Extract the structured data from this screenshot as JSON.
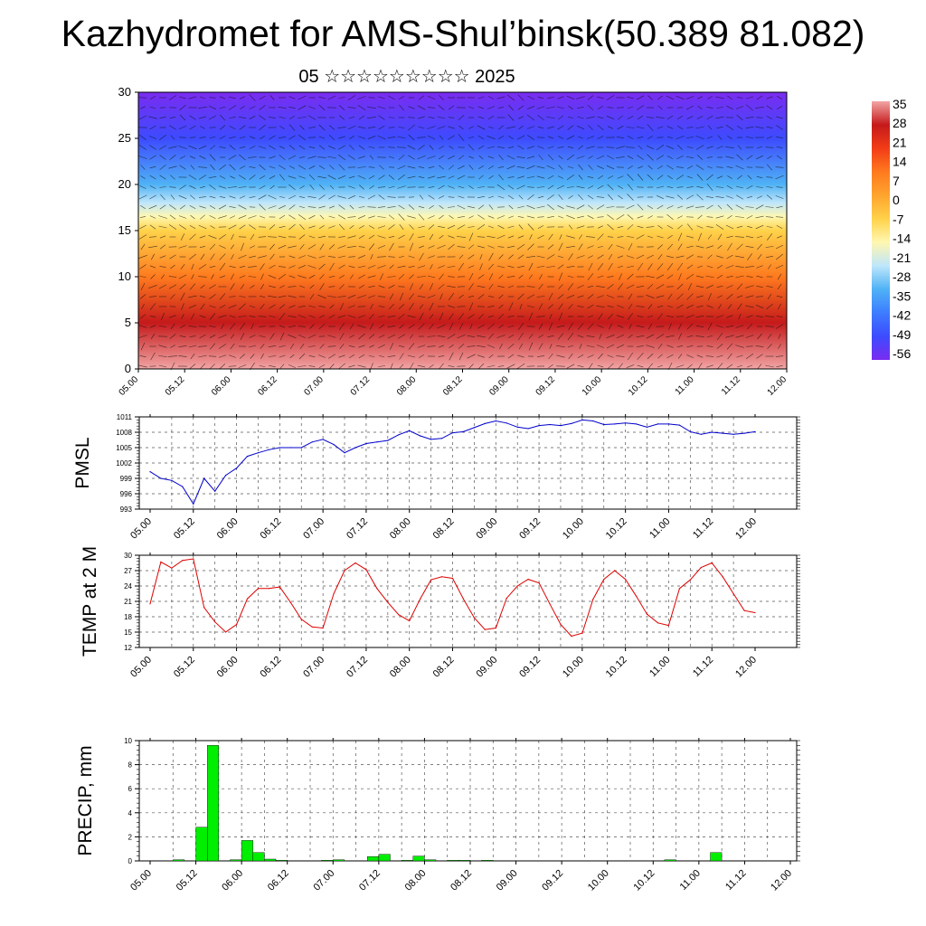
{
  "header": {
    "title": "Kazhydromet for AMS-Shul’binsk(50.389 81.082)",
    "subtitle": "05 ☆☆☆☆☆☆☆☆☆ 2025"
  },
  "time_ticks": [
    "05.00",
    "05.12",
    "06.00",
    "06.12",
    "07.00",
    "07.12",
    "08.00",
    "08.12",
    "09.00",
    "09.12",
    "10.00",
    "10.12",
    "11.00",
    "11.12",
    "12.00"
  ],
  "chart_data": [
    {
      "type": "heatmap",
      "title": "",
      "xlabel": "",
      "ylabel": "",
      "x_ticks": [
        "05.00",
        "05.12",
        "06.00",
        "06.12",
        "07.00",
        "07.12",
        "08.00",
        "08.12",
        "09.00",
        "09.12",
        "10.00",
        "10.12",
        "11.00",
        "11.12",
        "12.00"
      ],
      "y_ticks": [
        0,
        5,
        10,
        15,
        20,
        25,
        30
      ],
      "ylim": [
        0,
        30
      ],
      "wind_vectors": true,
      "colorbar": {
        "labels": [
          "35",
          "28",
          "21",
          "14",
          "7",
          "0",
          "-7",
          "-14",
          "-21",
          "-28",
          "-35",
          "-42",
          "-49",
          "-56"
        ],
        "range": [
          -56,
          35
        ],
        "colors": [
          "#7a2cf0",
          "#3d4bff",
          "#3d7cff",
          "#4fb2f5",
          "#bfe6fb",
          "#fff7b0",
          "#ffd24a",
          "#ffa42e",
          "#ff7a1e",
          "#f23c17",
          "#c51a1b",
          "#f2a5a5"
        ]
      },
      "profile": {
        "levels": [
          0,
          5,
          10,
          15,
          16.5,
          18,
          20,
          25,
          30
        ],
        "temperature": [
          30,
          21,
          10,
          -5,
          -13,
          -22,
          -32,
          -48,
          -54
        ]
      }
    },
    {
      "type": "line",
      "ylabel": "PMSL",
      "ylim": [
        993,
        1011
      ],
      "y_ticks": [
        993,
        996,
        999,
        1002,
        1005,
        1008,
        1011
      ],
      "x_ticks": [
        "05.00",
        "05.12",
        "06.00",
        "06.12",
        "07.00",
        "07.12",
        "08.00",
        "08.12",
        "09.00",
        "09.12",
        "10.00",
        "10.12",
        "11.00",
        "11.12",
        "12.00"
      ],
      "color": "#0000cc",
      "x": [
        0,
        3,
        6,
        9,
        12,
        15,
        18,
        21,
        24,
        27,
        30,
        33,
        36,
        39,
        42,
        45,
        48,
        51,
        54,
        57,
        60,
        63,
        66,
        69,
        72,
        75,
        78,
        81,
        84,
        87,
        90,
        93,
        96,
        99,
        102,
        105,
        108,
        111,
        114,
        117,
        120,
        123,
        126,
        129,
        132,
        135,
        138,
        141,
        144,
        147,
        150,
        153,
        156,
        159,
        162,
        165,
        168
      ],
      "values": [
        1000.3,
        999.0,
        998.6,
        997.4,
        994.0,
        999.0,
        996.5,
        999.6,
        1001.0,
        1003.3,
        1004.0,
        1004.6,
        1005.0,
        1005.0,
        1005.0,
        1006.1,
        1006.6,
        1005.6,
        1004.0,
        1005.0,
        1005.8,
        1006.1,
        1006.4,
        1007.5,
        1008.3,
        1007.3,
        1006.6,
        1006.8,
        1007.9,
        1008.1,
        1008.9,
        1009.7,
        1010.2,
        1009.8,
        1009.0,
        1008.7,
        1009.3,
        1009.5,
        1009.3,
        1009.7,
        1010.4,
        1010.2,
        1009.5,
        1009.6,
        1009.8,
        1009.6,
        1009.0,
        1009.6,
        1009.6,
        1009.4,
        1008.1,
        1007.6,
        1008.0,
        1007.8,
        1007.6,
        1007.8,
        1008.1
      ]
    },
    {
      "type": "line",
      "ylabel": "TEMP at 2 M",
      "ylim": [
        12,
        30
      ],
      "y_ticks": [
        12,
        15,
        18,
        21,
        24,
        27,
        30
      ],
      "x_ticks": [
        "05.00",
        "05.12",
        "06.00",
        "06.12",
        "07.00",
        "07.12",
        "08.00",
        "08.12",
        "09.00",
        "09.12",
        "10.00",
        "10.12",
        "11.00",
        "11.12",
        "12.00"
      ],
      "color": "#dd0000",
      "x": [
        0,
        3,
        6,
        9,
        12,
        15,
        18,
        21,
        24,
        27,
        30,
        33,
        36,
        39,
        42,
        45,
        48,
        51,
        54,
        57,
        60,
        63,
        66,
        69,
        72,
        75,
        78,
        81,
        84,
        87,
        90,
        93,
        96,
        99,
        102,
        105,
        108,
        111,
        114,
        117,
        120,
        123,
        126,
        129,
        132,
        135,
        138,
        141,
        144,
        147,
        150,
        153,
        156,
        159,
        162,
        165,
        168
      ],
      "values": [
        20.5,
        28.7,
        27.5,
        29.0,
        29.3,
        19.8,
        17.0,
        15.0,
        16.5,
        21.5,
        23.5,
        23.5,
        23.8,
        20.8,
        17.5,
        16.0,
        15.8,
        22.5,
        27.0,
        28.5,
        27.2,
        23.5,
        20.8,
        18.4,
        17.2,
        21.5,
        25.2,
        25.8,
        25.5,
        21.5,
        17.8,
        15.5,
        15.8,
        21.6,
        24.0,
        25.3,
        24.6,
        20.5,
        16.5,
        14.2,
        14.8,
        21.4,
        25.3,
        27.0,
        25.3,
        22.0,
        18.5,
        16.8,
        16.3,
        23.5,
        25.2,
        27.6,
        28.5,
        25.8,
        22.5,
        19.2,
        18.8
      ]
    },
    {
      "type": "bar",
      "ylabel": "PRECIP, mm",
      "ylim": [
        0,
        10
      ],
      "y_ticks": [
        0,
        2,
        4,
        6,
        8,
        10
      ],
      "x_ticks": [
        "05.00",
        "05.12",
        "06.00",
        "06.12",
        "07.00",
        "07.12",
        "08.00",
        "08.12",
        "09.00",
        "09.12",
        "10.00",
        "10.12",
        "11.00",
        "11.12",
        "12.00"
      ],
      "color": "#00ee00",
      "x": [
        9,
        15,
        18,
        24,
        27,
        30,
        33,
        36,
        48,
        51,
        60,
        63,
        69,
        72,
        75,
        81,
        84,
        90,
        138,
        150
      ],
      "values": [
        0.1,
        2.8,
        9.6,
        0.1,
        1.7,
        0.7,
        0.15,
        0.05,
        0.05,
        0.1,
        0.35,
        0.55,
        0.05,
        0.4,
        0.1,
        0.05,
        0.05,
        0.05,
        0.1,
        0.7
      ]
    }
  ]
}
